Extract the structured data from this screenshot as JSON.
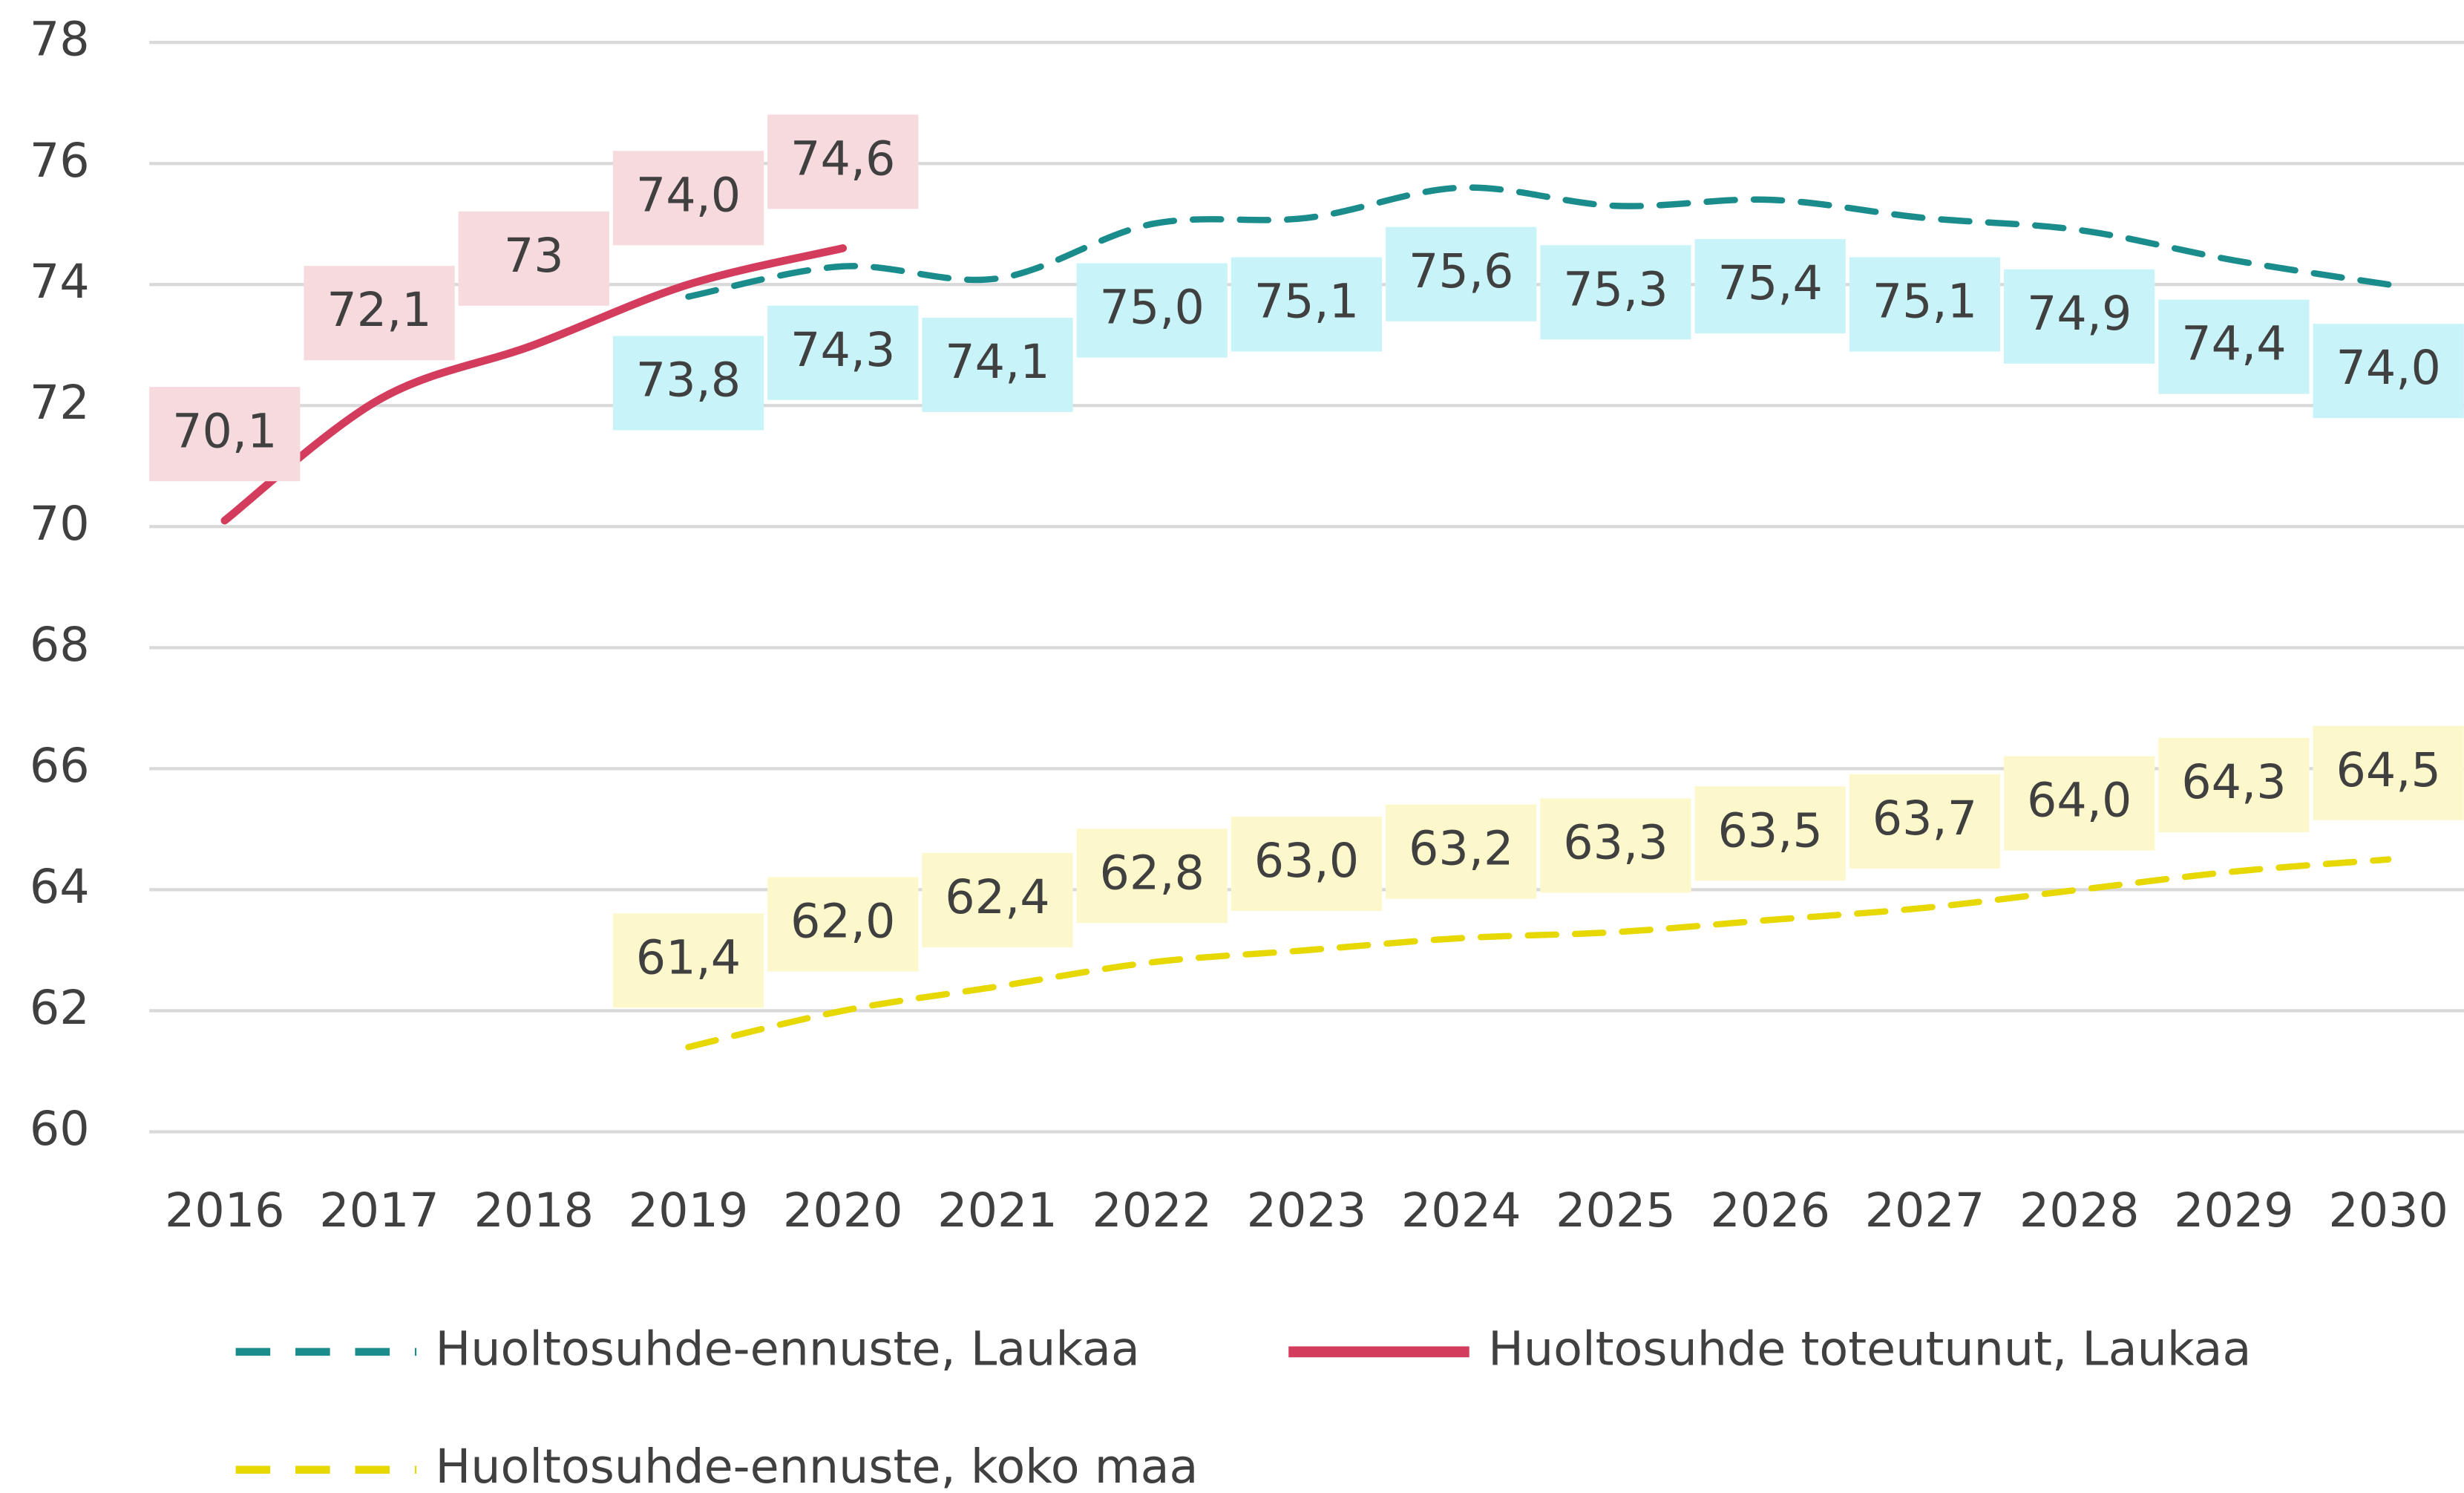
{
  "chart_data": {
    "type": "line",
    "categories": [
      "2016",
      "2017",
      "2018",
      "2019",
      "2020",
      "2021",
      "2022",
      "2023",
      "2024",
      "2025",
      "2026",
      "2027",
      "2028",
      "2029",
      "2030"
    ],
    "series": [
      {
        "name": "Huoltosuhde-ennuste, Laukaa",
        "color": "#1a8c8c",
        "dash": true,
        "label_bg": "#c8f4f9",
        "label_side": "below",
        "values": [
          null,
          null,
          null,
          73.8,
          74.3,
          74.1,
          75.0,
          75.1,
          75.6,
          75.3,
          75.4,
          75.1,
          74.9,
          74.4,
          74.0
        ],
        "value_labels": [
          null,
          null,
          null,
          "73,8",
          "74,3",
          "74,1",
          "75,0",
          "75,1",
          "75,6",
          "75,3",
          "75,4",
          "75,1",
          "74,9",
          "74,4",
          "74,0"
        ]
      },
      {
        "name": "Huoltosuhde toteutunut, Laukaa",
        "color": "#d33c5c",
        "dash": false,
        "label_bg": "#f7dade",
        "label_side": "above",
        "values": [
          70.1,
          72.1,
          73,
          74.0,
          74.6,
          null,
          null,
          null,
          null,
          null,
          null,
          null,
          null,
          null,
          null
        ],
        "value_labels": [
          "70,1",
          "72,1",
          "73",
          "74,0",
          "74,6",
          null,
          null,
          null,
          null,
          null,
          null,
          null,
          null,
          null,
          null
        ]
      },
      {
        "name": "Huoltosuhde-ennuste, koko maa",
        "color": "#e6d800",
        "dash": true,
        "label_bg": "#fdf8cb",
        "label_side": "above",
        "values": [
          null,
          null,
          null,
          61.4,
          62.0,
          62.4,
          62.8,
          63.0,
          63.2,
          63.3,
          63.5,
          63.7,
          64.0,
          64.3,
          64.5
        ],
        "value_labels": [
          null,
          null,
          null,
          "61,4",
          "62,0",
          "62,4",
          "62,8",
          "63,0",
          "63,2",
          "63,3",
          "63,5",
          "63,7",
          "64,0",
          "64,3",
          "64,5"
        ]
      }
    ],
    "ylim": [
      60,
      78
    ],
    "yticks": [
      60,
      62,
      64,
      66,
      68,
      70,
      72,
      74,
      76,
      78
    ],
    "grid": true,
    "legend": "bottom"
  }
}
